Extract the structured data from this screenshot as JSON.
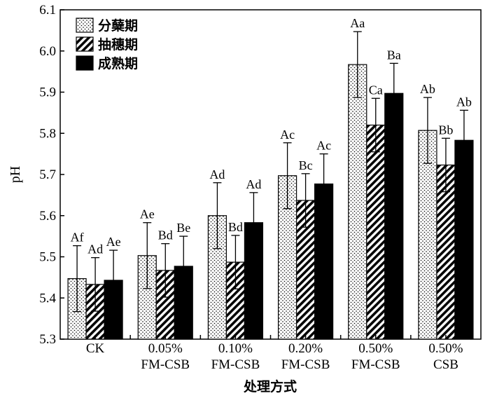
{
  "chart_data": {
    "type": "bar",
    "title": "",
    "xlabel": "处理方式",
    "ylabel": "pH",
    "ylim": [
      5.3,
      6.1
    ],
    "yticks": [
      "5.3",
      "5.4",
      "5.5",
      "5.6",
      "5.7",
      "5.8",
      "5.9",
      "6.0",
      "6.1"
    ],
    "grid": false,
    "legend_position": "top-left",
    "categories": [
      [
        "CK"
      ],
      [
        "0.05%",
        "FM-CSB"
      ],
      [
        "0.10%",
        "FM-CSB"
      ],
      [
        "0.20%",
        "FM-CSB"
      ],
      [
        "0.50%",
        "FM-CSB"
      ],
      [
        "0.50%",
        "CSB"
      ]
    ],
    "series": [
      {
        "name": "分蘖期",
        "pattern": "dots",
        "values": [
          5.447,
          5.503,
          5.6,
          5.697,
          5.967,
          5.807
        ],
        "errors": [
          0.08,
          0.08,
          0.08,
          0.08,
          0.08,
          0.08
        ],
        "labels": [
          "Af",
          "Ae",
          "Ad",
          "Ac",
          "Aa",
          "Ab"
        ]
      },
      {
        "name": "抽穗期",
        "pattern": "hatch",
        "values": [
          5.433,
          5.467,
          5.487,
          5.637,
          5.82,
          5.723
        ],
        "errors": [
          0.065,
          0.065,
          0.065,
          0.065,
          0.065,
          0.065
        ],
        "labels": [
          "Ad",
          "Bd",
          "Bd",
          "Bc",
          "Ca",
          "Bb"
        ]
      },
      {
        "name": "成熟期",
        "pattern": "solid",
        "values": [
          5.443,
          5.477,
          5.583,
          5.677,
          5.897,
          5.783
        ],
        "errors": [
          0.073,
          0.073,
          0.073,
          0.073,
          0.073,
          0.073
        ],
        "labels": [
          "Ae",
          "Be",
          "Ad",
          "Ac",
          "Ba",
          "Ab"
        ]
      }
    ]
  }
}
